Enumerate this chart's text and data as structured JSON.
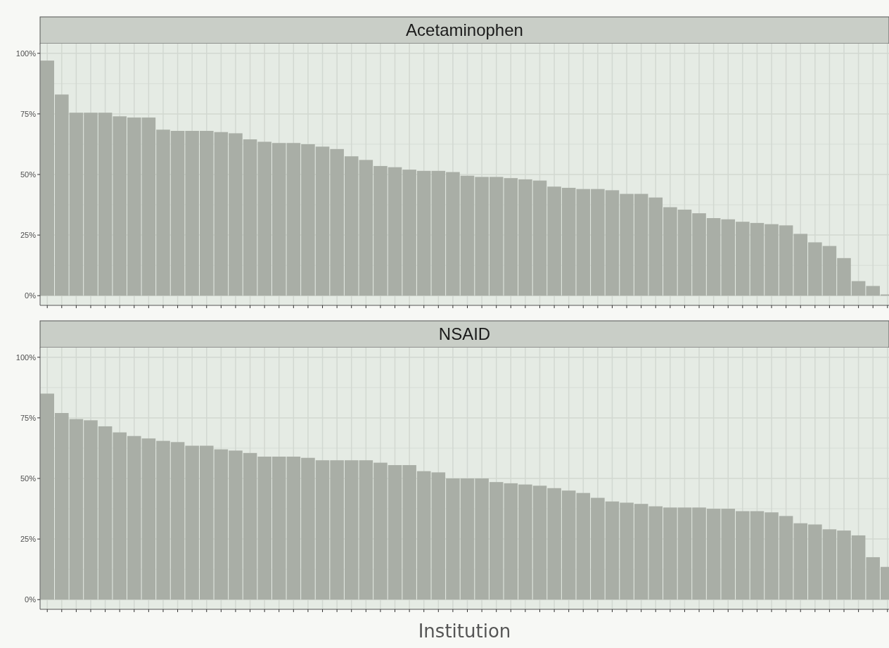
{
  "chart_data": [
    {
      "type": "bar",
      "title": "Acetaminophen",
      "categories": [
        null,
        null,
        null,
        null,
        null,
        null,
        null,
        null,
        null,
        null,
        null,
        null,
        null,
        null,
        null,
        null,
        null,
        null,
        null,
        null,
        null,
        null,
        null,
        null,
        null,
        null,
        null,
        null,
        null,
        null,
        null,
        null,
        null,
        null,
        null,
        null,
        null,
        null,
        null,
        null,
        null,
        null,
        null,
        null,
        null,
        null,
        null,
        null,
        null,
        null,
        null,
        null,
        null,
        null,
        null,
        null,
        null,
        null,
        null
      ],
      "values": [
        97,
        83,
        75.5,
        75.5,
        75.5,
        74,
        73.5,
        73.5,
        68.5,
        68,
        68,
        68,
        67.5,
        67,
        64.5,
        63.5,
        63,
        63,
        62.5,
        61.5,
        60.5,
        57.5,
        56,
        53.5,
        53,
        52,
        51.5,
        51.5,
        51,
        49.5,
        49,
        49,
        48.5,
        48,
        47.5,
        45,
        44.5,
        44,
        44,
        43.5,
        42,
        42,
        40.5,
        36.5,
        35.5,
        34,
        32,
        31.5,
        30.5,
        30,
        29.5,
        29,
        25.5,
        22,
        20.5,
        15.5,
        6,
        4,
        0.5
      ],
      "color": "#a9aea6",
      "ylim": [
        -4,
        104
      ],
      "yticks": [
        {
          "value": 0,
          "label": "0%"
        },
        {
          "value": 25,
          "label": "25%"
        },
        {
          "value": 50,
          "label": "50%"
        },
        {
          "value": 75,
          "label": "75%"
        },
        {
          "value": 100,
          "label": "100%"
        }
      ],
      "grid": true,
      "tick_labels": "y"
    },
    {
      "type": "bar",
      "title": "NSAID",
      "xlabel": "Institution",
      "categories": [
        null,
        null,
        null,
        null,
        null,
        null,
        null,
        null,
        null,
        null,
        null,
        null,
        null,
        null,
        null,
        null,
        null,
        null,
        null,
        null,
        null,
        null,
        null,
        null,
        null,
        null,
        null,
        null,
        null,
        null,
        null,
        null,
        null,
        null,
        null,
        null,
        null,
        null,
        null,
        null,
        null,
        null,
        null,
        null,
        null,
        null,
        null,
        null,
        null,
        null,
        null,
        null,
        null,
        null,
        null,
        null,
        null,
        null,
        null
      ],
      "values": [
        85,
        77,
        74.5,
        74,
        71.5,
        69,
        67.5,
        66.5,
        65.5,
        65,
        63.5,
        63.5,
        62,
        61.5,
        60.5,
        59,
        59,
        59,
        58.5,
        57.5,
        57.5,
        57.5,
        57.5,
        56.5,
        55.5,
        55.5,
        53,
        52.5,
        50,
        50,
        50,
        48.5,
        48,
        47.5,
        47,
        46,
        45,
        44,
        42,
        40.5,
        40,
        39.5,
        38.5,
        38,
        38,
        38,
        37.5,
        37.5,
        36.5,
        36.5,
        36,
        34.5,
        31.5,
        31,
        29,
        28.5,
        26.5,
        17.5,
        13.5
      ],
      "color": "#a9aea6",
      "ylim": [
        -4,
        104
      ],
      "yticks": [
        {
          "value": 0,
          "label": "0%"
        },
        {
          "value": 25,
          "label": "25%"
        },
        {
          "value": 50,
          "label": "50%"
        },
        {
          "value": 75,
          "label": "75%"
        },
        {
          "value": 100,
          "label": "100%"
        }
      ],
      "grid": true,
      "tick_labels": "y"
    }
  ]
}
